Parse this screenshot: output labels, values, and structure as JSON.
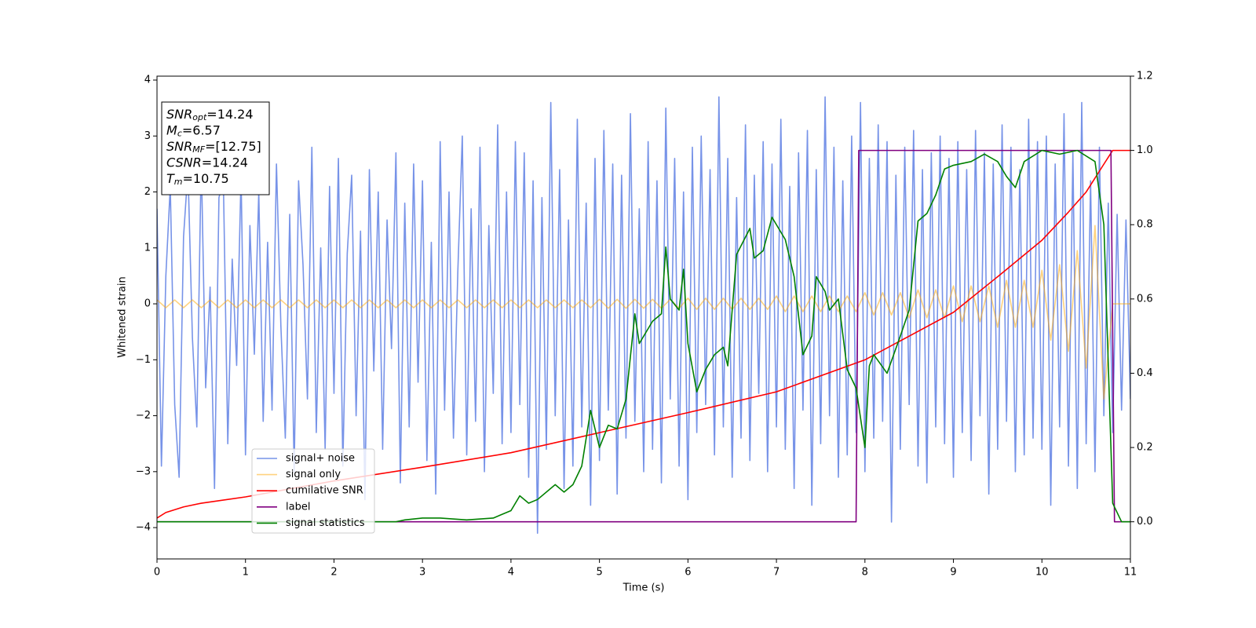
{
  "chart_data": {
    "type": "line",
    "xlabel": "Time (s)",
    "ylabel": "Whitened strain",
    "xlim": [
      0,
      11
    ],
    "xticks": [
      0,
      1,
      2,
      3,
      4,
      5,
      6,
      7,
      8,
      9,
      10,
      11
    ],
    "ylim": [
      -4.56,
      4.07
    ],
    "yticks": [
      {
        "value": -4,
        "label": "−4"
      },
      {
        "value": -3,
        "label": "−3"
      },
      {
        "value": -2,
        "label": "−2"
      },
      {
        "value": -1,
        "label": "−1"
      },
      0,
      1,
      2,
      3,
      4
    ],
    "y2lim": [
      -0.1,
      1.2
    ],
    "y2ticks": [
      {
        "value": 0,
        "label": "0.0"
      },
      0.2,
      0.4,
      0.6,
      0.8,
      {
        "value": 1,
        "label": "1.0"
      },
      1.2
    ],
    "legend": "lower left",
    "annotations": [
      {
        "main": "SNR",
        "sub": "opt",
        "rest": "=14.24"
      },
      {
        "main": "M",
        "sub": "c",
        "rest": "=6.57"
      },
      {
        "main": "SNR",
        "sub": "MF",
        "rest": "=[12.75]"
      },
      {
        "main": "CSNR",
        "rest": "=14.24"
      },
      {
        "main": "T",
        "sub": "m",
        "rest": "=10.75"
      }
    ],
    "series": [
      {
        "name": "signal+ noise",
        "color": "#7793e8",
        "x": [
          0,
          0.05,
          0.1,
          0.15,
          0.2,
          0.25,
          0.3,
          0.35,
          0.4,
          0.45,
          0.5,
          0.55,
          0.6,
          0.65,
          0.7,
          0.75,
          0.8,
          0.85,
          0.9,
          0.95,
          1,
          1.05,
          1.1,
          1.15,
          1.2,
          1.25,
          1.3,
          1.35,
          1.4,
          1.45,
          1.5,
          1.55,
          1.6,
          1.65,
          1.7,
          1.75,
          1.8,
          1.85,
          1.9,
          1.95,
          2,
          2.05,
          2.1,
          2.15,
          2.2,
          2.25,
          2.3,
          2.35,
          2.4,
          2.45,
          2.5,
          2.55,
          2.6,
          2.65,
          2.7,
          2.75,
          2.8,
          2.85,
          2.9,
          2.95,
          3,
          3.05,
          3.1,
          3.15,
          3.2,
          3.25,
          3.3,
          3.35,
          3.4,
          3.45,
          3.5,
          3.55,
          3.6,
          3.65,
          3.7,
          3.75,
          3.8,
          3.85,
          3.9,
          3.95,
          4,
          4.05,
          4.1,
          4.15,
          4.2,
          4.25,
          4.3,
          4.35,
          4.4,
          4.45,
          4.5,
          4.55,
          4.6,
          4.65,
          4.7,
          4.75,
          4.8,
          4.85,
          4.9,
          4.95,
          5,
          5.05,
          5.1,
          5.15,
          5.2,
          5.25,
          5.3,
          5.35,
          5.4,
          5.45,
          5.5,
          5.55,
          5.6,
          5.65,
          5.7,
          5.75,
          5.8,
          5.85,
          5.9,
          5.95,
          6,
          6.05,
          6.1,
          6.15,
          6.2,
          6.25,
          6.3,
          6.35,
          6.4,
          6.45,
          6.5,
          6.55,
          6.6,
          6.65,
          6.7,
          6.75,
          6.8,
          6.85,
          6.9,
          6.95,
          7,
          7.05,
          7.1,
          7.15,
          7.2,
          7.25,
          7.3,
          7.35,
          7.4,
          7.45,
          7.5,
          7.55,
          7.6,
          7.65,
          7.7,
          7.75,
          7.8,
          7.85,
          7.9,
          7.95,
          8,
          8.05,
          8.1,
          8.15,
          8.2,
          8.25,
          8.3,
          8.35,
          8.4,
          8.45,
          8.5,
          8.55,
          8.6,
          8.65,
          8.7,
          8.75,
          8.8,
          8.85,
          8.9,
          8.95,
          9,
          9.05,
          9.1,
          9.15,
          9.2,
          9.25,
          9.3,
          9.35,
          9.4,
          9.45,
          9.5,
          9.55,
          9.6,
          9.65,
          9.7,
          9.75,
          9.8,
          9.85,
          9.9,
          9.95,
          10,
          10.05,
          10.1,
          10.15,
          10.2,
          10.25,
          10.3,
          10.35,
          10.4,
          10.45,
          10.5,
          10.55,
          10.6,
          10.65,
          10.7,
          10.75,
          10.8,
          10.85,
          10.9,
          10.95,
          11
        ],
        "values": [
          1.7,
          -2.9,
          0.5,
          2.1,
          -1.8,
          -3.1,
          1.2,
          2.4,
          -0.6,
          -2.2,
          2.6,
          -1.5,
          0.3,
          -3.3,
          1.9,
          2.2,
          -2.5,
          0.8,
          -1.1,
          2.3,
          -2.7,
          1.4,
          -0.9,
          2.0,
          -2.1,
          1.1,
          -1.9,
          2.5,
          -0.4,
          -2.4,
          1.6,
          -3.0,
          2.2,
          0.7,
          -1.7,
          2.8,
          -2.3,
          1.0,
          -2.6,
          2.1,
          -1.6,
          2.6,
          -2.9,
          0.9,
          2.3,
          -2.0,
          1.3,
          -3.5,
          2.4,
          -1.2,
          2.0,
          -2.6,
          1.5,
          -0.8,
          2.7,
          -3.2,
          1.8,
          -2.2,
          2.5,
          -1.4,
          2.2,
          -2.8,
          1.1,
          -3.4,
          2.9,
          -1.9,
          2.0,
          -2.4,
          0.6,
          3.0,
          -2.7,
          1.7,
          -2.1,
          2.8,
          -3.0,
          1.4,
          -1.6,
          3.2,
          -2.5,
          2.0,
          -2.3,
          2.9,
          -1.8,
          2.7,
          -3.1,
          2.2,
          -4.1,
          1.9,
          -2.6,
          3.6,
          -2.0,
          2.4,
          -3.3,
          1.5,
          -2.9,
          3.3,
          -2.2,
          1.8,
          -3.6,
          2.6,
          -2.8,
          3.1,
          -1.9,
          2.5,
          -3.4,
          2.3,
          -2.4,
          3.4,
          -2.1,
          1.7,
          -3.0,
          2.9,
          -2.6,
          2.2,
          -3.2,
          3.5,
          -1.7,
          2.6,
          -2.9,
          2.0,
          -3.5,
          2.8,
          -2.3,
          3.0,
          -1.8,
          2.4,
          -2.7,
          3.7,
          -2.2,
          2.6,
          -3.1,
          1.9,
          -2.4,
          3.2,
          -2.8,
          2.3,
          -1.6,
          2.9,
          -3.0,
          2.5,
          -2.2,
          3.3,
          -2.6,
          2.1,
          -3.3,
          2.7,
          -1.9,
          3.1,
          -3.6,
          2.4,
          -2.5,
          3.7,
          -2.0,
          2.8,
          -3.1,
          2.2,
          -2.7,
          3.0,
          -2.3,
          3.6,
          -3.0,
          2.6,
          -2.4,
          3.2,
          -2.1,
          2.9,
          -3.9,
          2.3,
          -2.6,
          2.8,
          -1.8,
          3.1,
          -2.9,
          2.4,
          -3.2,
          2.7,
          -2.2,
          3.0,
          -2.5,
          2.6,
          -3.1,
          2.9,
          -2.3,
          2.4,
          -2.8,
          3.1,
          -2.0,
          2.7,
          -3.4,
          2.5,
          -2.6,
          3.2,
          -2.1,
          2.8,
          -3.0,
          2.4,
          -2.7,
          3.3,
          -2.4,
          2.9,
          -2.6,
          3.0,
          -3.6,
          2.5,
          -2.2,
          3.4,
          -2.9,
          2.7,
          -3.3,
          3.6,
          -2.5,
          2.2,
          -3.0,
          2.8,
          -2.0,
          1.8,
          -2.3,
          1.6,
          -1.9,
          1.5,
          -1.7
        ]
      },
      {
        "name": "signal only",
        "color": "#ffa500",
        "x": [
          0,
          0.1,
          0.2,
          0.3,
          0.4,
          0.5,
          0.6,
          0.7,
          0.8,
          0.9,
          1,
          1.1,
          1.2,
          1.3,
          1.4,
          1.5,
          1.6,
          1.7,
          1.8,
          1.9,
          2,
          2.1,
          2.2,
          2.3,
          2.4,
          2.5,
          2.6,
          2.7,
          2.8,
          2.9,
          3,
          3.1,
          3.2,
          3.3,
          3.4,
          3.5,
          3.6,
          3.7,
          3.8,
          3.9,
          4,
          4.1,
          4.2,
          4.3,
          4.4,
          4.5,
          4.6,
          4.7,
          4.8,
          4.9,
          5,
          5.1,
          5.2,
          5.3,
          5.4,
          5.5,
          5.6,
          5.7,
          5.8,
          5.9,
          6,
          6.1,
          6.2,
          6.3,
          6.4,
          6.5,
          6.6,
          6.7,
          6.8,
          6.9,
          7,
          7.1,
          7.2,
          7.3,
          7.4,
          7.5,
          7.6,
          7.7,
          7.8,
          7.9,
          8,
          8.1,
          8.2,
          8.3,
          8.4,
          8.5,
          8.6,
          8.7,
          8.8,
          8.9,
          9,
          9.1,
          9.2,
          9.3,
          9.4,
          9.5,
          9.6,
          9.7,
          9.8,
          9.9,
          10,
          10.1,
          10.2,
          10.3,
          10.4,
          10.5,
          10.6,
          10.7,
          10.8,
          11
        ],
        "values": [
          0.07,
          -0.07,
          0.07,
          -0.07,
          0.07,
          -0.07,
          0.07,
          -0.07,
          0.07,
          -0.07,
          0.07,
          -0.07,
          0.07,
          -0.07,
          0.07,
          -0.07,
          0.07,
          -0.07,
          0.07,
          -0.07,
          0.07,
          -0.07,
          0.07,
          -0.07,
          0.07,
          -0.07,
          0.07,
          -0.07,
          0.07,
          -0.07,
          0.07,
          -0.07,
          0.07,
          -0.07,
          0.07,
          -0.07,
          0.07,
          -0.07,
          0.07,
          -0.07,
          0.07,
          -0.07,
          0.07,
          -0.07,
          0.07,
          -0.07,
          0.07,
          -0.07,
          0.07,
          -0.07,
          0.08,
          -0.08,
          0.08,
          -0.08,
          0.08,
          -0.08,
          0.08,
          -0.08,
          0.08,
          -0.08,
          0.1,
          -0.1,
          0.1,
          -0.1,
          0.1,
          -0.1,
          0.1,
          -0.1,
          0.1,
          -0.1,
          0.14,
          -0.14,
          0.14,
          -0.14,
          0.14,
          -0.14,
          0.14,
          -0.14,
          0.14,
          -0.14,
          0.2,
          -0.2,
          0.2,
          -0.2,
          0.2,
          -0.25,
          0.25,
          -0.25,
          0.25,
          -0.25,
          0.32,
          -0.32,
          0.32,
          -0.32,
          0.32,
          -0.42,
          0.42,
          -0.42,
          0.42,
          -0.42,
          0.6,
          -0.65,
          0.7,
          -0.85,
          0.95,
          -1.15,
          1.4,
          -1.7,
          0,
          0
        ]
      },
      {
        "name": "cumilative SNR",
        "color": "#ff0000",
        "axis": "y2",
        "x": [
          0,
          0.1,
          0.3,
          0.5,
          1,
          2,
          3,
          4,
          5,
          6,
          7,
          8,
          8.5,
          9,
          9.5,
          10,
          10.3,
          10.5,
          10.7,
          10.8,
          11
        ],
        "values": [
          0.01,
          0.025,
          0.04,
          0.05,
          0.067,
          0.11,
          0.147,
          0.186,
          0.24,
          0.294,
          0.35,
          0.436,
          0.5,
          0.564,
          0.66,
          0.758,
          0.834,
          0.888,
          0.963,
          1,
          1
        ]
      },
      {
        "name": "label",
        "color": "#800080",
        "axis": "y2",
        "x": [
          0,
          7.9,
          7.93,
          10.78,
          10.82,
          11
        ],
        "values": [
          0,
          0,
          1,
          1,
          0,
          0
        ]
      },
      {
        "name": "signal statistics",
        "color": "#008000",
        "axis": "y2",
        "x": [
          0,
          2.7,
          2.8,
          3.0,
          3.2,
          3.5,
          3.8,
          4.0,
          4.1,
          4.2,
          4.3,
          4.5,
          4.6,
          4.7,
          4.8,
          4.9,
          5.0,
          5.1,
          5.2,
          5.3,
          5.4,
          5.45,
          5.6,
          5.7,
          5.75,
          5.8,
          5.9,
          5.95,
          6.0,
          6.1,
          6.2,
          6.3,
          6.4,
          6.45,
          6.55,
          6.7,
          6.75,
          6.85,
          6.95,
          7.0,
          7.1,
          7.2,
          7.3,
          7.4,
          7.45,
          7.55,
          7.6,
          7.7,
          7.8,
          7.9,
          8.0,
          8.05,
          8.1,
          8.25,
          8.4,
          8.5,
          8.6,
          8.7,
          8.8,
          8.9,
          9.0,
          9.2,
          9.35,
          9.5,
          9.6,
          9.7,
          9.8,
          10.0,
          10.2,
          10.4,
          10.6,
          10.7,
          10.8,
          10.9,
          11
        ],
        "values": [
          0,
          0,
          0.005,
          0.01,
          0.01,
          0.005,
          0.01,
          0.03,
          0.07,
          0.05,
          0.06,
          0.1,
          0.08,
          0.1,
          0.15,
          0.3,
          0.2,
          0.26,
          0.25,
          0.33,
          0.56,
          0.48,
          0.54,
          0.56,
          0.74,
          0.6,
          0.57,
          0.68,
          0.48,
          0.35,
          0.41,
          0.45,
          0.47,
          0.42,
          0.72,
          0.79,
          0.71,
          0.73,
          0.82,
          0.8,
          0.76,
          0.66,
          0.45,
          0.5,
          0.66,
          0.62,
          0.57,
          0.6,
          0.41,
          0.36,
          0.2,
          0.42,
          0.45,
          0.4,
          0.5,
          0.57,
          0.81,
          0.83,
          0.88,
          0.95,
          0.96,
          0.97,
          0.99,
          0.97,
          0.93,
          0.9,
          0.97,
          1,
          0.99,
          1,
          0.97,
          0.8,
          0.05,
          0,
          0
        ]
      }
    ]
  }
}
